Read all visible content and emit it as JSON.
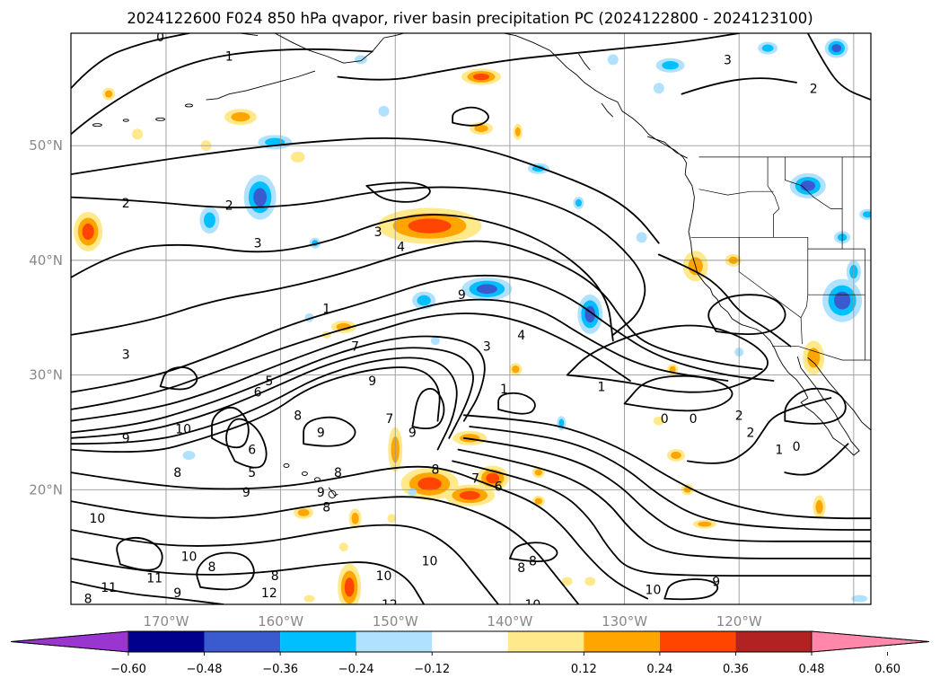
{
  "title": "2024122600 F024 850 hPa qvapor, river basin precipitation PC (2024122800 - 2024123100)",
  "lon_ticks": [
    "170°W",
    "160°W",
    "150°W",
    "140°W",
    "130°W",
    "120°W"
  ],
  "lat_ticks": [
    "50°N",
    "40°N",
    "30°N",
    "20°N"
  ],
  "colorbar": {
    "tick_labels": [
      "−0.60",
      "−0.48",
      "−0.36",
      "−0.24",
      "−0.12",
      "0.12",
      "0.24",
      "0.36",
      "0.48",
      "0.60"
    ],
    "colors": [
      "#9a35d0",
      "#00008c",
      "#3a5ad0",
      "#00bfff",
      "#b0e2ff",
      "#ffffff",
      "#ffe98a",
      "#ffa500",
      "#ff4500",
      "#b22222",
      "#ff88aa"
    ]
  },
  "contour_labels": [
    {
      "text": "0",
      "lon": -170.5,
      "lat": 59.5
    },
    {
      "text": "1",
      "lon": -164.5,
      "lat": 57.8
    },
    {
      "text": "2",
      "lon": -173.5,
      "lat": 45.0
    },
    {
      "text": "2",
      "lon": -164.5,
      "lat": 44.8
    },
    {
      "text": "3",
      "lon": -162.0,
      "lat": 41.5
    },
    {
      "text": "3",
      "lon": -151.5,
      "lat": 42.5
    },
    {
      "text": "4",
      "lon": -149.5,
      "lat": 41.2
    },
    {
      "text": "9",
      "lon": -144.2,
      "lat": 37.0
    },
    {
      "text": "1",
      "lon": -156.0,
      "lat": 35.8
    },
    {
      "text": "3",
      "lon": -173.5,
      "lat": 31.8
    },
    {
      "text": "5",
      "lon": -161.0,
      "lat": 29.5
    },
    {
      "text": "6",
      "lon": -162.0,
      "lat": 28.5
    },
    {
      "text": "7",
      "lon": -153.5,
      "lat": 32.5
    },
    {
      "text": "9",
      "lon": -152.0,
      "lat": 29.5
    },
    {
      "text": "3",
      "lon": -142.0,
      "lat": 32.5
    },
    {
      "text": "4",
      "lon": -139.0,
      "lat": 33.5
    },
    {
      "text": "1",
      "lon": -140.5,
      "lat": 28.8
    },
    {
      "text": "8",
      "lon": -158.5,
      "lat": 26.5
    },
    {
      "text": "9",
      "lon": -173.5,
      "lat": 24.5
    },
    {
      "text": "10",
      "lon": -168.5,
      "lat": 25.3
    },
    {
      "text": "6",
      "lon": -162.5,
      "lat": 23.5
    },
    {
      "text": "9",
      "lon": -156.5,
      "lat": 25.0
    },
    {
      "text": "7",
      "lon": -150.5,
      "lat": 26.2
    },
    {
      "text": "9",
      "lon": -148.5,
      "lat": 25.0
    },
    {
      "text": "8",
      "lon": -169.0,
      "lat": 21.5
    },
    {
      "text": "5",
      "lon": -162.5,
      "lat": 21.5
    },
    {
      "text": "8",
      "lon": -155.0,
      "lat": 21.5
    },
    {
      "text": "8",
      "lon": -146.5,
      "lat": 21.8
    },
    {
      "text": "7",
      "lon": -143.0,
      "lat": 21.0
    },
    {
      "text": "6",
      "lon": -141.0,
      "lat": 20.3
    },
    {
      "text": "9",
      "lon": -163.0,
      "lat": 19.8
    },
    {
      "text": "9",
      "lon": -156.5,
      "lat": 19.8
    },
    {
      "text": "8",
      "lon": -156.0,
      "lat": 18.5
    },
    {
      "text": "10",
      "lon": -176.0,
      "lat": 17.5
    },
    {
      "text": "10",
      "lon": -168.0,
      "lat": 14.2
    },
    {
      "text": "8",
      "lon": -166.0,
      "lat": 13.3
    },
    {
      "text": "11",
      "lon": -171.0,
      "lat": 12.3
    },
    {
      "text": "11",
      "lon": -175.0,
      "lat": 11.5
    },
    {
      "text": "8",
      "lon": -176.8,
      "lat": 10.5
    },
    {
      "text": "9",
      "lon": -169.0,
      "lat": 11.0
    },
    {
      "text": "8",
      "lon": -160.5,
      "lat": 12.5
    },
    {
      "text": "12",
      "lon": -161.0,
      "lat": 11.0
    },
    {
      "text": "10",
      "lon": -151.0,
      "lat": 12.5
    },
    {
      "text": "12",
      "lon": -150.5,
      "lat": 10.0
    },
    {
      "text": "10",
      "lon": -147.0,
      "lat": 13.8
    },
    {
      "text": "8",
      "lon": -139.0,
      "lat": 13.2
    },
    {
      "text": "8",
      "lon": -138.0,
      "lat": 13.8
    },
    {
      "text": "10",
      "lon": -138.0,
      "lat": 10.0
    },
    {
      "text": "10",
      "lon": -127.5,
      "lat": 11.3
    },
    {
      "text": "9",
      "lon": -122.0,
      "lat": 12.0
    },
    {
      "text": "1",
      "lon": -132.0,
      "lat": 29.0
    },
    {
      "text": "0",
      "lon": -126.5,
      "lat": 26.2
    },
    {
      "text": "0",
      "lon": -124.0,
      "lat": 26.2
    },
    {
      "text": "2",
      "lon": -120.0,
      "lat": 26.5
    },
    {
      "text": "2",
      "lon": -119.0,
      "lat": 25.0
    },
    {
      "text": "1",
      "lon": -116.5,
      "lat": 23.5
    },
    {
      "text": "0",
      "lon": -115.0,
      "lat": 23.8
    },
    {
      "text": "3",
      "lon": -121.0,
      "lat": 57.5
    },
    {
      "text": "2",
      "lon": -113.5,
      "lat": 55.0
    }
  ]
}
